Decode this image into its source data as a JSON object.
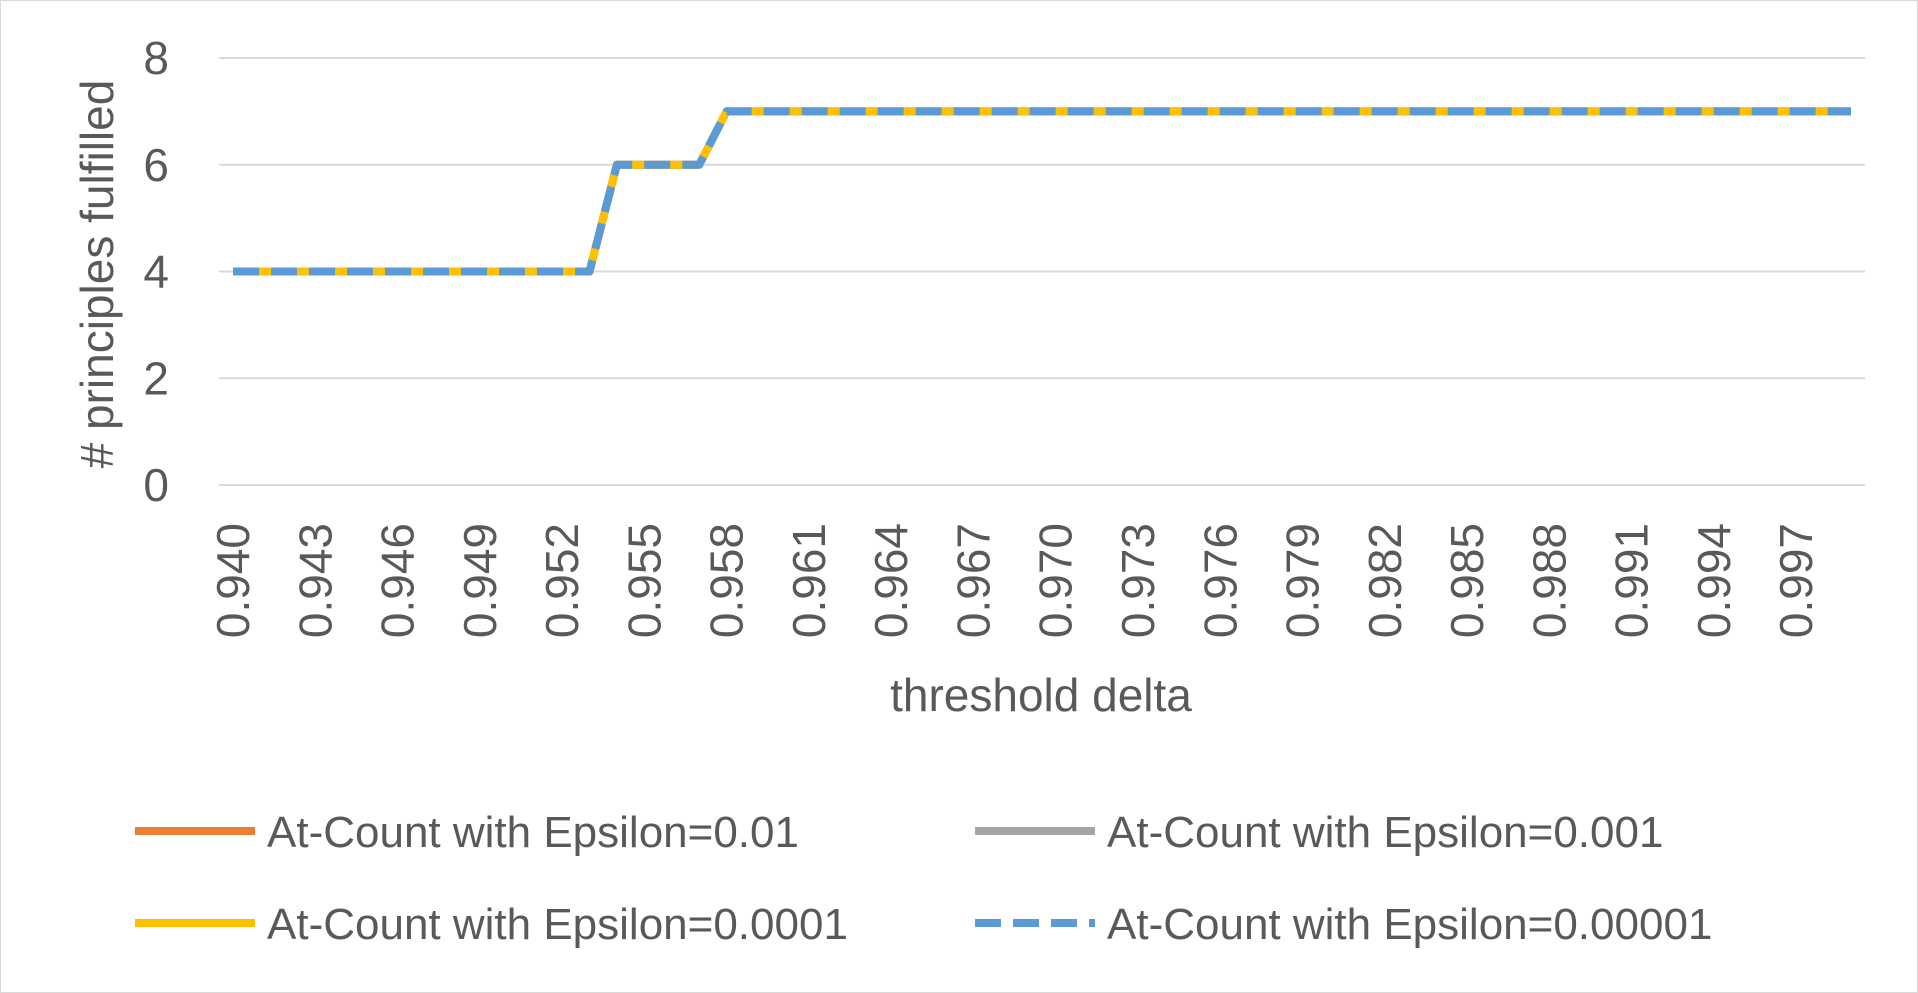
{
  "chart_data": {
    "type": "line",
    "title": "",
    "xlabel": "threshold delta",
    "ylabel": "# principles fulfilled",
    "ylim": [
      0,
      8
    ],
    "yticks": [
      "0",
      "2",
      "4",
      "6",
      "8"
    ],
    "grid": true,
    "legend_position": "bottom",
    "x": [
      0.94,
      0.941,
      0.942,
      0.943,
      0.944,
      0.945,
      0.946,
      0.947,
      0.948,
      0.949,
      0.95,
      0.951,
      0.952,
      0.953,
      0.954,
      0.955,
      0.956,
      0.957,
      0.958,
      0.959,
      0.96,
      0.961,
      0.962,
      0.963,
      0.964,
      0.965,
      0.966,
      0.967,
      0.968,
      0.969,
      0.97,
      0.971,
      0.972,
      0.973,
      0.974,
      0.975,
      0.976,
      0.977,
      0.978,
      0.979,
      0.98,
      0.981,
      0.982,
      0.983,
      0.984,
      0.985,
      0.986,
      0.987,
      0.988,
      0.989,
      0.99,
      0.991,
      0.992,
      0.993,
      0.994,
      0.995,
      0.996,
      0.997,
      0.998,
      0.999
    ],
    "xtick_labels": [
      "0.940",
      "0.943",
      "0.946",
      "0.949",
      "0.952",
      "0.955",
      "0.958",
      "0.961",
      "0.964",
      "0.967",
      "0.970",
      "0.973",
      "0.976",
      "0.979",
      "0.982",
      "0.985",
      "0.988",
      "0.991",
      "0.994",
      "0.997"
    ],
    "series": [
      {
        "name": "At-Count with Epsilon=0.01",
        "color": "#ed7d31",
        "dash": "solid",
        "values": [
          4,
          4,
          4,
          4,
          4,
          4,
          4,
          4,
          4,
          4,
          4,
          4,
          4,
          4,
          6,
          6,
          6,
          6,
          7,
          7,
          7,
          7,
          7,
          7,
          7,
          7,
          7,
          7,
          7,
          7,
          7,
          7,
          7,
          7,
          7,
          7,
          7,
          7,
          7,
          7,
          7,
          7,
          7,
          7,
          7,
          7,
          7,
          7,
          7,
          7,
          7,
          7,
          7,
          7,
          7,
          7,
          7,
          7,
          7,
          7
        ]
      },
      {
        "name": "At-Count with Epsilon=0.001",
        "color": "#a5a5a5",
        "dash": "solid",
        "values": [
          4,
          4,
          4,
          4,
          4,
          4,
          4,
          4,
          4,
          4,
          4,
          4,
          4,
          4,
          6,
          6,
          6,
          6,
          7,
          7,
          7,
          7,
          7,
          7,
          7,
          7,
          7,
          7,
          7,
          7,
          7,
          7,
          7,
          7,
          7,
          7,
          7,
          7,
          7,
          7,
          7,
          7,
          7,
          7,
          7,
          7,
          7,
          7,
          7,
          7,
          7,
          7,
          7,
          7,
          7,
          7,
          7,
          7,
          7,
          7
        ]
      },
      {
        "name": "At-Count with Epsilon=0.0001",
        "color": "#ffc000",
        "dash": "solid",
        "values": [
          4,
          4,
          4,
          4,
          4,
          4,
          4,
          4,
          4,
          4,
          4,
          4,
          4,
          4,
          6,
          6,
          6,
          6,
          7,
          7,
          7,
          7,
          7,
          7,
          7,
          7,
          7,
          7,
          7,
          7,
          7,
          7,
          7,
          7,
          7,
          7,
          7,
          7,
          7,
          7,
          7,
          7,
          7,
          7,
          7,
          7,
          7,
          7,
          7,
          7,
          7,
          7,
          7,
          7,
          7,
          7,
          7,
          7,
          7,
          7
        ]
      },
      {
        "name": "At-Count with Epsilon=0.00001",
        "color": "#5b9bd5",
        "dash": "dashed",
        "values": [
          4,
          4,
          4,
          4,
          4,
          4,
          4,
          4,
          4,
          4,
          4,
          4,
          4,
          4,
          6,
          6,
          6,
          6,
          7,
          7,
          7,
          7,
          7,
          7,
          7,
          7,
          7,
          7,
          7,
          7,
          7,
          7,
          7,
          7,
          7,
          7,
          7,
          7,
          7,
          7,
          7,
          7,
          7,
          7,
          7,
          7,
          7,
          7,
          7,
          7,
          7,
          7,
          7,
          7,
          7,
          7,
          7,
          7,
          7,
          7
        ]
      }
    ]
  }
}
